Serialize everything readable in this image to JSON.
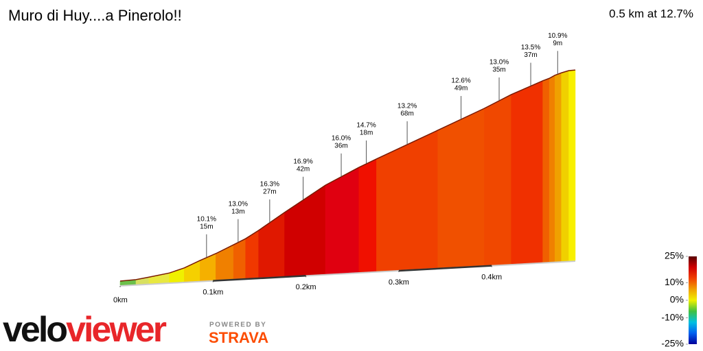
{
  "chart_data": {
    "type": "gradient-profile",
    "title": "Muro di Huy....a Pinerolo!!",
    "summary": "0.5 km at 12.7%",
    "x": [
      0,
      0.017,
      0.031,
      0.053,
      0.069,
      0.086,
      0.103,
      0.122,
      0.135,
      0.149,
      0.177,
      0.221,
      0.257,
      0.276,
      0.342,
      0.392,
      0.421,
      0.455,
      0.462,
      0.468,
      0.475,
      0.483,
      0.49
    ],
    "elevation": [
      0,
      0.2,
      0.8,
      1.8,
      3.2,
      5.4,
      7.4,
      10.0,
      11.8,
      14.3,
      19.8,
      28.1,
      33.4,
      35.9,
      44.3,
      50.7,
      54.8,
      58.8,
      59.5,
      60.4,
      61.1,
      61.7,
      61.8
    ],
    "segment_colors": [
      "#6cc04a",
      "#d8e060",
      "#e8e840",
      "#f0f000",
      "#f5d000",
      "#f5b000",
      "#f08000",
      "#f06000",
      "#f03800",
      "#e01800",
      "#d00000",
      "#e00010",
      "#f01000",
      "#f04000",
      "#f05000",
      "#f04800",
      "#f03000",
      "#f06000",
      "#f08000",
      "#f0a000",
      "#f0d000",
      "#f8f000"
    ],
    "xlim": [
      0,
      0.49
    ],
    "ylim": [
      0,
      65
    ],
    "xticks": [
      {
        "value": 0,
        "label": "0km"
      },
      {
        "value": 0.1,
        "label": "0.1km"
      },
      {
        "value": 0.2,
        "label": "0.2km"
      },
      {
        "value": 0.3,
        "label": "0.3km"
      },
      {
        "value": 0.4,
        "label": "0.4km"
      }
    ],
    "annotations": {
      "km": [
        0.093,
        0.127,
        0.161,
        0.197,
        0.238,
        0.265,
        0.309,
        0.367,
        0.408,
        0.442,
        0.471
      ],
      "grades": [
        10.1,
        13.0,
        16.3,
        16.9,
        16.0,
        14.7,
        13.2,
        12.6,
        13.0,
        13.5,
        10.9
      ],
      "grade_labels": [
        "10.1%",
        "13.0%",
        "16.3%",
        "16.9%",
        "16.0%",
        "14.7%",
        "13.2%",
        "12.6%",
        "13.0%",
        "13.5%",
        "10.9%"
      ],
      "lengths": [
        15,
        13,
        27,
        42,
        36,
        18,
        68,
        49,
        35,
        37,
        9
      ],
      "length_labels": [
        "15m",
        "13m",
        "27m",
        "42m",
        "36m",
        "18m",
        "68m",
        "49m",
        "35m",
        "37m",
        "9m"
      ]
    },
    "color_scale": {
      "lim": [
        -25,
        25
      ],
      "ticks": [
        {
          "value": 25,
          "label": "25%"
        },
        {
          "value": 10,
          "label": "10%"
        },
        {
          "value": 0,
          "label": "0%"
        },
        {
          "value": -10,
          "label": "-10%"
        },
        {
          "value": -25,
          "label": "-25%"
        }
      ],
      "colors": [
        "#5a0000",
        "#d00000",
        "#f04000",
        "#f0a000",
        "#f0f000",
        "#40c040",
        "#00c0e0",
        "#0060f0",
        "#00009a"
      ]
    }
  },
  "brand": {
    "velo": "velo",
    "viewer": "viewer",
    "powered": "POWERED BY",
    "partner": "STRAVA"
  }
}
